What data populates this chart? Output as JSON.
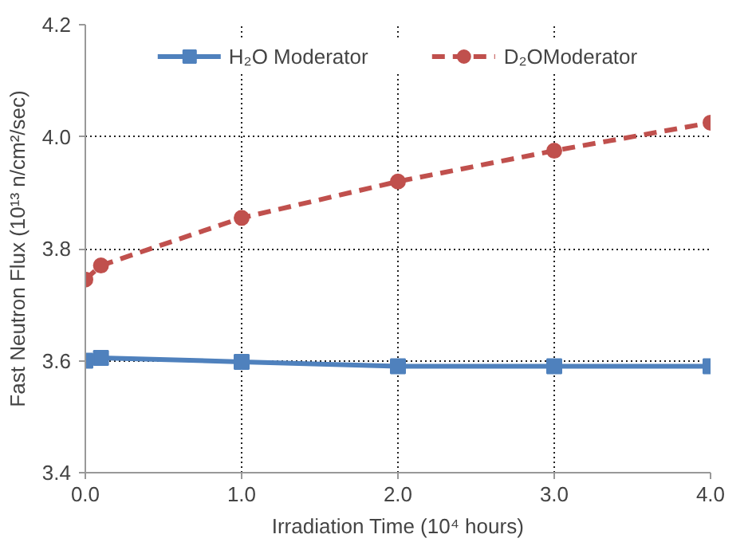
{
  "chart_data": {
    "type": "line",
    "xlabel": "Irradiation Time (10⁴ hours)",
    "ylabel": "Fast Neutron Flux (10¹³ n/cm²/sec)",
    "series": [
      {
        "name": "H₂O Moderator",
        "color": "#4f81bd",
        "marker": "square",
        "line_style": "solid",
        "x": [
          0,
          0.1,
          1,
          2,
          3,
          4
        ],
        "values": [
          3.6,
          3.605,
          3.598,
          3.59,
          3.59,
          3.59
        ]
      },
      {
        "name": "D₂OModerator",
        "color": "#c0504d",
        "marker": "circle",
        "line_style": "dashed",
        "x": [
          0,
          0.1,
          1,
          2,
          3,
          4
        ],
        "values": [
          3.745,
          3.77,
          3.855,
          3.92,
          3.975,
          4.025
        ]
      }
    ],
    "xlim": [
      0,
      4
    ],
    "ylim": [
      3.4,
      4.2
    ],
    "xticks": [
      {
        "value": 0,
        "label": "0.0"
      },
      {
        "value": 1,
        "label": "1.0"
      },
      {
        "value": 2,
        "label": "2.0"
      },
      {
        "value": 3,
        "label": "3.0"
      },
      {
        "value": 4,
        "label": "4.0"
      }
    ],
    "yticks": [
      {
        "value": 3.4,
        "label": "3.4"
      },
      {
        "value": 3.6,
        "label": "3.6"
      },
      {
        "value": 3.8,
        "label": "3.8"
      },
      {
        "value": 4.0,
        "label": "4.0"
      },
      {
        "value": 4.2,
        "label": "4.2"
      }
    ],
    "grid": true,
    "legend": "top"
  }
}
